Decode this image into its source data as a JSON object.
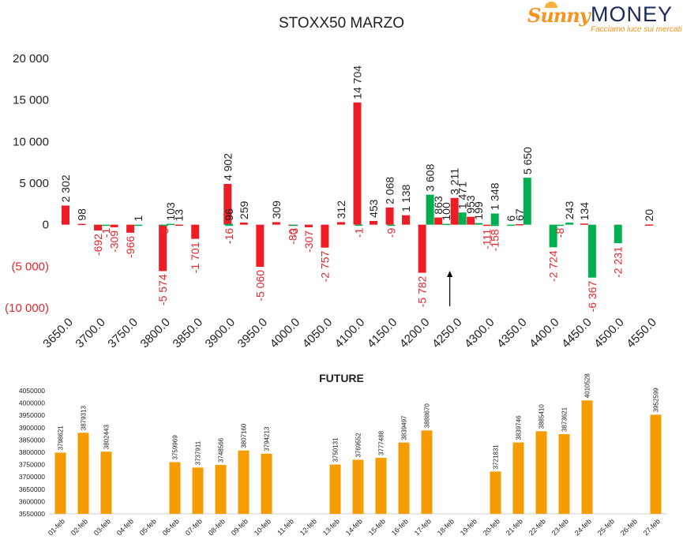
{
  "logo": {
    "brand_a": "Sunny",
    "brand_b": "MONEY",
    "tagline": "Facciamo luce sui mercati"
  },
  "colors": {
    "red": "#ee1c25",
    "green": "#00b050",
    "orange": "#f59c00",
    "text_dark": "#222222",
    "axis_red": "#e8262b"
  },
  "chart_data": [
    {
      "type": "bar",
      "title": "STOXX50 MARZO",
      "xlabel": "",
      "ylabel": "",
      "ylim": [
        -10000,
        20000
      ],
      "yticks": [
        20000,
        15000,
        10000,
        5000,
        0,
        -5000,
        -10000
      ],
      "ytick_labels": [
        "20 000",
        "15 000",
        "10 000",
        "5 000",
        "0",
        "(5 000)",
        "(10 000)"
      ],
      "xlim": [
        3650,
        4550
      ],
      "xticks": [
        3650,
        3700,
        3750,
        3800,
        3850,
        3900,
        3950,
        4000,
        4050,
        4100,
        4150,
        4200,
        4250,
        4300,
        4350,
        4400,
        4450,
        4500,
        4550
      ],
      "xtick_labels": [
        "3650.0",
        "3700.0",
        "3750.0",
        "3800.0",
        "3850.0",
        "3900.0",
        "3950.0",
        "4000.0",
        "4050.0",
        "4100.0",
        "4150.0",
        "4200.0",
        "4250.0",
        "4300.0",
        "4350.0",
        "4400.0",
        "4450.0",
        "4500.0",
        "4550.0"
      ],
      "grid": false,
      "series": [
        {
          "color": "#ee1c25",
          "points": [
            {
              "x": 3650,
              "y": 2302,
              "label": "2 302"
            },
            {
              "x": 3675,
              "y": 98,
              "label": "98"
            },
            {
              "x": 3700,
              "y": -692,
              "label": "-692"
            },
            {
              "x": 3725,
              "y": -309,
              "label": "-309"
            },
            {
              "x": 3750,
              "y": -966,
              "label": "-966"
            },
            {
              "x": 3800,
              "y": -5574,
              "label": "-5 574"
            },
            {
              "x": 3825,
              "y": 13,
              "label": "13"
            },
            {
              "x": 3850,
              "y": -1701,
              "label": "-1 701"
            },
            {
              "x": 3900,
              "y": 4902,
              "label": "4 902"
            },
            {
              "x": 3925,
              "y": 259,
              "label": "259"
            },
            {
              "x": 3950,
              "y": -5060,
              "label": "-5 060"
            },
            {
              "x": 3975,
              "y": 309,
              "label": "309"
            },
            {
              "x": 4000,
              "y": -80,
              "label": "-80"
            },
            {
              "x": 4025,
              "y": -307,
              "label": "-307"
            },
            {
              "x": 4050,
              "y": -2757,
              "label": "-2 757"
            },
            {
              "x": 4075,
              "y": 312,
              "label": "312"
            },
            {
              "x": 4100,
              "y": 14704,
              "label": "14 704"
            },
            {
              "x": 4125,
              "y": 453,
              "label": "453"
            },
            {
              "x": 4150,
              "y": 2068,
              "label": "2 068"
            },
            {
              "x": 4175,
              "y": 1138,
              "label": "1 138"
            },
            {
              "x": 4200,
              "y": -5782,
              "label": "-5 782"
            },
            {
              "x": 4225,
              "y": 863,
              "label": "863"
            },
            {
              "x": 4250,
              "y": 3211,
              "label": "3 211"
            },
            {
              "x": 4275,
              "y": 953,
              "label": "953"
            },
            {
              "x": 4300,
              "y": -111,
              "label": "-111"
            },
            {
              "x": 4350,
              "y": 67,
              "label": "67"
            },
            {
              "x": 4450,
              "y": 134,
              "label": "134"
            },
            {
              "x": 4550,
              "y": 20,
              "label": "20"
            }
          ]
        },
        {
          "color": "#00b050",
          "points": [
            {
              "x": 3700,
              "y": -1,
              "label": "-1"
            },
            {
              "x": 3750,
              "y": 1,
              "label": "1"
            },
            {
              "x": 3800,
              "y": 103,
              "label": "103"
            },
            {
              "x": 3790,
              "y": -8,
              "label": "-8"
            },
            {
              "x": 3890,
              "y": 96,
              "label": "96"
            },
            {
              "x": 3890,
              "y": -16,
              "label": "-16"
            },
            {
              "x": 3990,
              "y": -3,
              "label": "-3"
            },
            {
              "x": 4090,
              "y": -1,
              "label": "-1"
            },
            {
              "x": 4140,
              "y": -9,
              "label": "-9"
            },
            {
              "x": 4200,
              "y": 3608,
              "label": "3 608"
            },
            {
              "x": 4225,
              "y": 100,
              "label": "100"
            },
            {
              "x": 4250,
              "y": 1471,
              "label": "1 471"
            },
            {
              "x": 4275,
              "y": 199,
              "label": "199"
            },
            {
              "x": 4300,
              "y": 1348,
              "label": "1 348"
            },
            {
              "x": 4300,
              "y": -158,
              "label": "-158"
            },
            {
              "x": 4325,
              "y": 6,
              "label": "6"
            },
            {
              "x": 4350,
              "y": 5650,
              "label": "5 650"
            },
            {
              "x": 4390,
              "y": -2724,
              "label": "-2 724"
            },
            {
              "x": 4400,
              "y": -8,
              "label": "-8"
            },
            {
              "x": 4415,
              "y": 243,
              "label": "243"
            },
            {
              "x": 4450,
              "y": -6367,
              "label": "-6 367"
            },
            {
              "x": 4490,
              "y": -2231,
              "label": "-2 231"
            }
          ]
        }
      ],
      "annotations": [
        {
          "type": "arrow-up",
          "x": 4250
        }
      ]
    },
    {
      "type": "bar",
      "title": "FUTURE",
      "xlabel": "",
      "ylabel": "",
      "ylim": [
        3550000,
        4050000
      ],
      "yticks": [
        4050000,
        4000000,
        3950000,
        3900000,
        3850000,
        3800000,
        3750000,
        3700000,
        3650000,
        3600000,
        3550000
      ],
      "ytick_labels": [
        "4050000",
        "4000000",
        "3950000",
        "3900000",
        "3850000",
        "3800000",
        "3750000",
        "3700000",
        "3650000",
        "3600000",
        "3550000"
      ],
      "categories": [
        "01-feb",
        "02-feb",
        "03-feb",
        "04-feb",
        "05-feb",
        "06-feb",
        "07-feb",
        "08-feb",
        "09-feb",
        "10-feb",
        "11-feb",
        "12-feb",
        "13-feb",
        "14-feb",
        "15-feb",
        "16-feb",
        "17-feb",
        "18-feb",
        "19-feb",
        "20-feb",
        "21-feb",
        "22-feb",
        "23-feb",
        "24-feb",
        "25-feb",
        "26-feb",
        "27-feb"
      ],
      "values": [
        3798621,
        3879313,
        3802443,
        null,
        null,
        3759969,
        3737911,
        3748566,
        3807160,
        3794213,
        null,
        null,
        3750131,
        3769552,
        3777488,
        3839497,
        3888670,
        null,
        null,
        3721831,
        3839746,
        3885410,
        3873621,
        4010528,
        null,
        null,
        3952599
      ],
      "value_labels": [
        "3798621",
        "3879313",
        "3802443",
        "",
        "",
        "3759969",
        "3737911",
        "3748566",
        "3807160",
        "3794213",
        "",
        "",
        "3750131",
        "3769552",
        "3777488",
        "3839497",
        "3888670",
        "",
        "",
        "3721831",
        "3839746",
        "3885410",
        "3873621",
        "4010528",
        "",
        "",
        "3952599"
      ],
      "color": "#f59c00",
      "grid": false
    }
  ]
}
